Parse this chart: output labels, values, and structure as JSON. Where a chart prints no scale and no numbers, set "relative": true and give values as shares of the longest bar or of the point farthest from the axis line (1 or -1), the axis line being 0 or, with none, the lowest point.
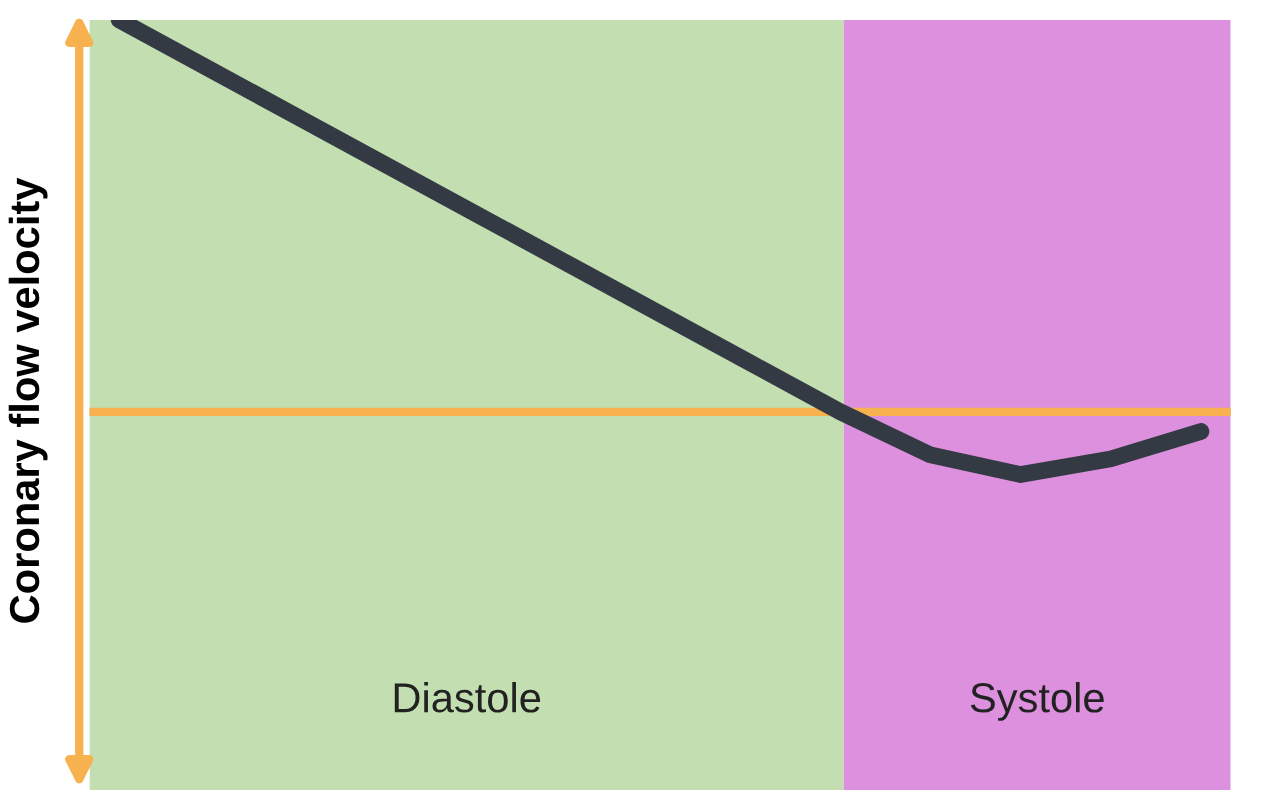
{
  "chart_data": {
    "type": "line",
    "ylabel": "Coronary flow velocity",
    "relative": true,
    "categories": [
      null,
      null,
      null,
      null,
      null,
      null,
      null,
      null,
      null,
      null,
      null,
      null,
      null
    ],
    "series": [
      {
        "color": "#333a44",
        "values": [
          1,
          0.875,
          0.75,
          0.625,
          0.5,
          0.375,
          0.25,
          0.125,
          0,
          -0.11,
          -0.16,
          -0.12,
          -0.05
        ]
      }
    ],
    "annotations": [
      "Diastole",
      "Systole"
    ],
    "ref_lines": [
      {
        "axis": "y",
        "value": 0,
        "color": "#f7b24f"
      }
    ],
    "marker": "none",
    "line_style": "solid",
    "legend": false
  }
}
